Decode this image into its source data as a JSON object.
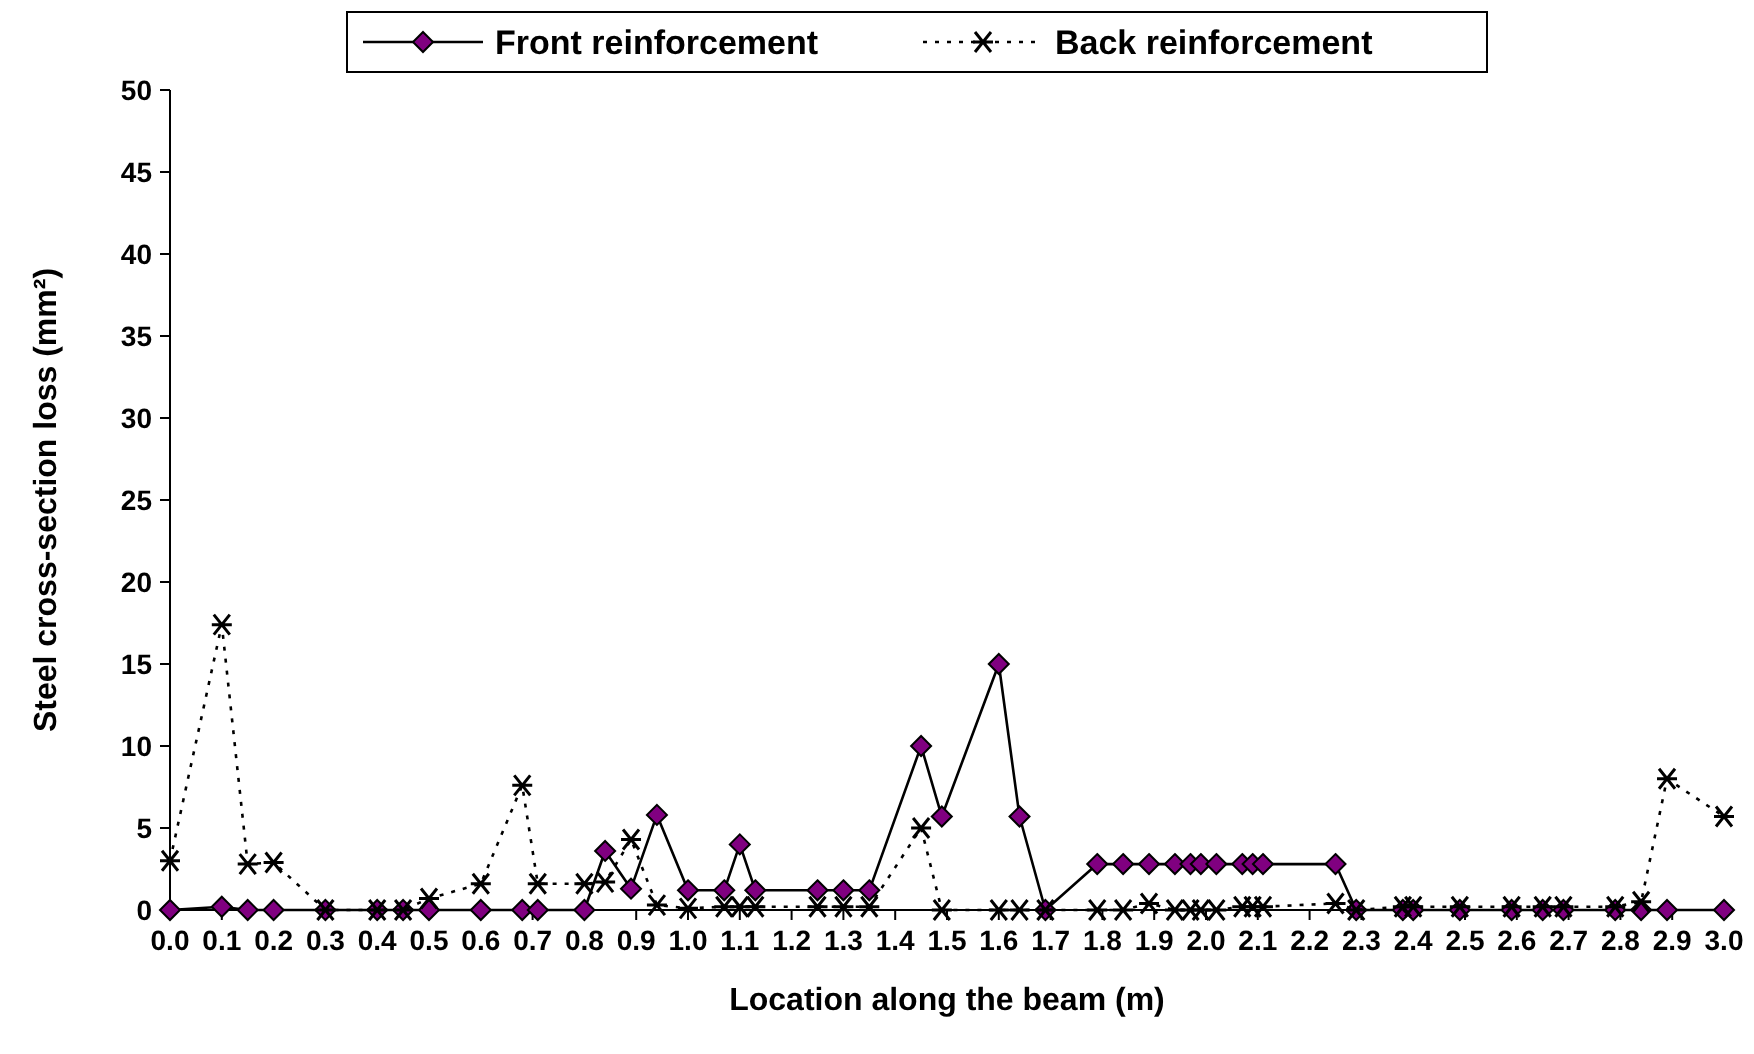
{
  "chart_data": {
    "type": "line",
    "xlabel": "Location along the beam (m)",
    "ylabel": "Steel cross-section loss (mm²)",
    "xlim": [
      0,
      3
    ],
    "ylim": [
      0,
      50
    ],
    "yticks": [
      0,
      5,
      10,
      15,
      20,
      25,
      30,
      35,
      40,
      45,
      50
    ],
    "xticks": [
      {
        "value": 0,
        "label": "0.0"
      },
      {
        "value": 0.1,
        "label": "0.1"
      },
      {
        "value": 0.2,
        "label": "0.2"
      },
      {
        "value": 0.3,
        "label": "0.3"
      },
      {
        "value": 0.4,
        "label": "0.4"
      },
      {
        "value": 0.5,
        "label": "0.5"
      },
      {
        "value": 0.6,
        "label": "0.6"
      },
      {
        "value": 0.7,
        "label": "0.7"
      },
      {
        "value": 0.8,
        "label": "0.8"
      },
      {
        "value": 0.9,
        "label": "0.9"
      },
      {
        "value": 1,
        "label": "1.0"
      },
      {
        "value": 1.1,
        "label": "1.1"
      },
      {
        "value": 1.2,
        "label": "1.2"
      },
      {
        "value": 1.3,
        "label": "1.3"
      },
      {
        "value": 1.4,
        "label": "1.4"
      },
      {
        "value": 1.5,
        "label": "1.5"
      },
      {
        "value": 1.6,
        "label": "1.6"
      },
      {
        "value": 1.7,
        "label": "1.7"
      },
      {
        "value": 1.8,
        "label": "1.8"
      },
      {
        "value": 1.9,
        "label": "1.9"
      },
      {
        "value": 2,
        "label": "2.0"
      },
      {
        "value": 2.1,
        "label": "2.1"
      },
      {
        "value": 2.2,
        "label": "2.2"
      },
      {
        "value": 2.3,
        "label": "2.3"
      },
      {
        "value": 2.4,
        "label": "2.4"
      },
      {
        "value": 2.5,
        "label": "2.5"
      },
      {
        "value": 2.6,
        "label": "2.6"
      },
      {
        "value": 2.7,
        "label": "2.7"
      },
      {
        "value": 2.8,
        "label": "2.8"
      },
      {
        "value": 2.9,
        "label": "2.9"
      },
      {
        "value": 3,
        "label": "3.0"
      }
    ],
    "x": [
      0,
      0.1,
      0.15,
      0.2,
      0.3,
      0.4,
      0.45,
      0.5,
      0.6,
      0.68,
      0.71,
      0.8,
      0.84,
      0.89,
      0.94,
      1.0,
      1.07,
      1.1,
      1.13,
      1.25,
      1.3,
      1.35,
      1.45,
      1.49,
      1.6,
      1.64,
      1.69,
      1.79,
      1.84,
      1.89,
      1.94,
      1.97,
      1.99,
      2.02,
      2.07,
      2.09,
      2.11,
      2.25,
      2.29,
      2.38,
      2.4,
      2.49,
      2.59,
      2.65,
      2.69,
      2.79,
      2.84,
      2.89,
      3.0
    ],
    "grid": false,
    "legend": "top",
    "series": [
      {
        "name": "Front reinforcement",
        "color": "#800080",
        "marker": "diamond",
        "line_style": "solid",
        "values": [
          0,
          0.2,
          0,
          0,
          0,
          0,
          0,
          0,
          0,
          0,
          0,
          0,
          3.6,
          1.3,
          5.8,
          1.2,
          1.2,
          4.0,
          1.2,
          1.2,
          1.2,
          1.2,
          10,
          5.7,
          15,
          5.7,
          0,
          2.8,
          2.8,
          2.8,
          2.8,
          2.8,
          2.8,
          2.8,
          2.8,
          2.8,
          2.8,
          2.8,
          0,
          0,
          0,
          0,
          0,
          0,
          0,
          0,
          0,
          0,
          0
        ]
      },
      {
        "name": "Back reinforcement",
        "color": "#000000",
        "marker": "cross",
        "line_style": "dotted",
        "values": [
          3.0,
          17.4,
          2.8,
          2.9,
          0,
          0,
          0,
          0.7,
          1.6,
          7.6,
          1.6,
          1.6,
          1.7,
          4.3,
          0.3,
          0.1,
          0.2,
          0.2,
          0.2,
          0.2,
          0.2,
          0.2,
          5.0,
          0,
          0,
          0,
          0,
          0,
          0,
          0.4,
          0,
          0,
          0,
          0,
          0.2,
          0.2,
          0.2,
          0.4,
          0,
          0.2,
          0.2,
          0.2,
          0.2,
          0.2,
          0.2,
          0.2,
          0.5,
          8.0,
          5.7
        ]
      }
    ]
  }
}
